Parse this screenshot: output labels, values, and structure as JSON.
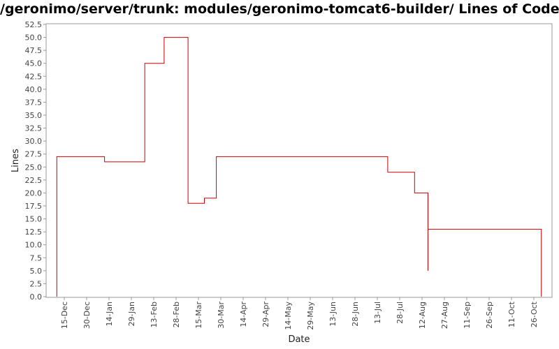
{
  "chart_data": {
    "type": "line",
    "step": true,
    "title": "/geronimo/server/trunk: modules/geronimo-tomcat6-builder/ Lines of Code",
    "xlabel": "Date",
    "ylabel": "Lines",
    "ylim": [
      0,
      52.5
    ],
    "y_ticks": [
      "0.0",
      "2.5",
      "5.0",
      "7.5",
      "10.0",
      "12.5",
      "15.0",
      "17.5",
      "20.0",
      "22.5",
      "25.0",
      "27.5",
      "30.0",
      "32.5",
      "35.0",
      "37.5",
      "40.0",
      "42.5",
      "45.0",
      "47.5",
      "50.0",
      "52.5"
    ],
    "x_ticks": [
      "15-Dec",
      "30-Dec",
      "14-Jan",
      "29-Jan",
      "13-Feb",
      "28-Feb",
      "15-Mar",
      "30-Mar",
      "14-Apr",
      "29-Apr",
      "14-May",
      "29-May",
      "13-Jun",
      "28-Jun",
      "13-Jul",
      "28-Jul",
      "12-Aug",
      "27-Aug",
      "11-Sep",
      "26-Sep",
      "11-Oct",
      "26-Oct"
    ],
    "grid": false,
    "line_color": "#cc0000",
    "series": [
      {
        "points": [
          {
            "x": "10-Dec",
            "y": 0
          },
          {
            "x": "10-Dec",
            "y": 27
          },
          {
            "x": "11-Jan",
            "y": 26
          },
          {
            "x": "07-Feb",
            "y": 45
          },
          {
            "x": "20-Feb",
            "y": 50
          },
          {
            "x": "08-Mar",
            "y": 18
          },
          {
            "x": "19-Mar",
            "y": 19
          },
          {
            "x": "27-Mar",
            "y": 27
          },
          {
            "x": "20-Jul",
            "y": 24
          },
          {
            "x": "07-Aug",
            "y": 20
          },
          {
            "x": "16-Aug",
            "y": 5
          },
          {
            "x": "16-Aug",
            "y": 13
          },
          {
            "x": "31-Oct",
            "y": 13
          },
          {
            "x": "31-Oct",
            "y": 0
          }
        ]
      }
    ]
  }
}
